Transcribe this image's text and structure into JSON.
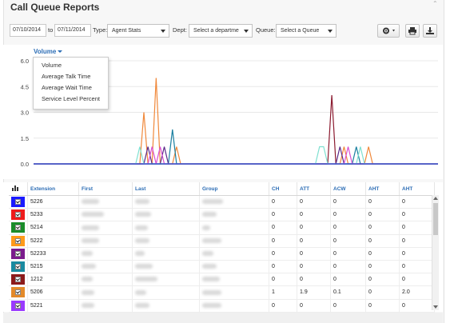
{
  "header": {
    "title": "Call Queue Reports"
  },
  "toolbar": {
    "date_from": "07/10/2014",
    "to_label": "to",
    "date_to": "07/11/2014",
    "type_label": "Type:",
    "type_value": "Agent Stats",
    "dept_label": "Dept:",
    "dept_value": "Select a departme",
    "queue_label": "Queue:",
    "queue_value": "Select a Queue"
  },
  "metric_menu": {
    "selected": "Volume",
    "items": [
      "Volume",
      "Average Talk Time",
      "Average Wait Time",
      "Service Level Percent"
    ]
  },
  "chart_data": {
    "type": "line",
    "y_ticks": [
      "6.0",
      "4.5",
      "3.0",
      "1.5",
      "0.0"
    ],
    "ylim": [
      0,
      6
    ],
    "x": [
      0,
      1,
      2,
      3,
      4,
      5,
      6,
      7,
      8,
      9,
      10,
      11,
      12,
      13,
      14,
      15,
      16,
      17,
      18,
      19,
      20,
      21,
      22,
      23,
      24,
      25,
      26,
      27,
      28,
      29,
      30,
      31,
      32,
      33,
      34,
      35,
      36,
      37,
      38,
      39,
      40,
      41,
      42,
      43,
      44,
      45,
      46,
      47,
      48,
      49,
      50,
      51,
      52,
      53,
      54,
      55,
      56,
      57,
      58,
      59,
      60,
      61,
      62,
      63,
      64,
      65,
      66,
      67,
      68,
      69,
      70,
      71,
      72,
      73,
      74,
      75,
      76,
      77,
      78,
      79,
      80,
      81,
      82,
      83,
      84,
      85,
      86,
      87,
      88,
      89,
      90,
      91,
      92,
      93,
      94,
      95,
      96,
      97,
      98,
      99
    ],
    "series": [
      {
        "color": "#f0883a",
        "values": [
          0,
          0,
          0,
          0,
          0,
          0,
          0,
          0,
          0,
          0,
          0,
          0,
          0,
          0,
          0,
          0,
          0,
          0,
          0,
          0,
          0,
          0,
          0,
          0,
          0,
          0,
          0,
          3,
          0,
          0,
          5,
          0,
          0,
          0,
          0,
          1,
          0,
          0,
          0,
          0,
          0,
          0,
          0,
          0,
          0,
          0,
          0,
          0,
          0,
          0,
          0,
          0,
          0,
          0,
          0,
          0,
          0,
          0,
          0,
          0,
          0,
          0,
          0,
          0,
          0,
          0,
          0,
          0,
          0,
          0,
          0,
          0,
          0,
          0,
          0,
          0,
          1,
          0,
          0,
          0,
          0,
          0,
          1,
          0,
          0,
          0,
          0,
          0,
          0,
          0,
          0,
          0,
          0,
          0,
          0,
          0,
          0,
          0,
          0,
          0
        ]
      },
      {
        "color": "#8b1a2f",
        "values": [
          0,
          0,
          0,
          0,
          0,
          0,
          0,
          0,
          0,
          0,
          0,
          0,
          0,
          0,
          0,
          0,
          0,
          0,
          0,
          0,
          0,
          0,
          0,
          0,
          0,
          0,
          0,
          0,
          0,
          0,
          0,
          0,
          0,
          0,
          0,
          0,
          0,
          0,
          0,
          0,
          0,
          0,
          0,
          0,
          0,
          0,
          0,
          0,
          0,
          0,
          0,
          0,
          0,
          0,
          0,
          0,
          0,
          0,
          0,
          0,
          0,
          0,
          0,
          0,
          0,
          0,
          0,
          0,
          0,
          0,
          0,
          0,
          0,
          4,
          0,
          0,
          0,
          0,
          0,
          0,
          0,
          0,
          0,
          0,
          0,
          0,
          0,
          0,
          0,
          0,
          0,
          0,
          0,
          0,
          0,
          0,
          0,
          0,
          0,
          0
        ]
      },
      {
        "color": "#1a7fa0",
        "values": [
          0,
          0,
          0,
          0,
          0,
          0,
          0,
          0,
          0,
          0,
          0,
          0,
          0,
          0,
          0,
          0,
          0,
          0,
          0,
          0,
          0,
          0,
          0,
          0,
          0,
          0,
          0,
          0,
          0,
          0,
          0,
          0,
          0,
          0,
          2,
          0,
          0,
          0,
          0,
          0,
          0,
          0,
          0,
          0,
          0,
          0,
          0,
          0,
          0,
          0,
          0,
          0,
          0,
          0,
          0,
          0,
          0,
          0,
          0,
          0,
          0,
          0,
          0,
          0,
          0,
          0,
          0,
          0,
          0,
          0,
          0,
          0,
          0,
          0,
          0,
          0,
          0,
          0,
          0,
          1,
          0,
          0,
          0,
          0,
          0,
          0,
          0,
          0,
          0,
          0,
          0,
          0,
          0,
          0,
          0,
          0,
          0,
          0,
          0,
          0
        ]
      },
      {
        "color": "#5a2a8a",
        "values": [
          0,
          0,
          0,
          0,
          0,
          0,
          0,
          0,
          0,
          0,
          0,
          0,
          0,
          0,
          0,
          0,
          0,
          0,
          0,
          0,
          0,
          0,
          0,
          0,
          0,
          0,
          0,
          0,
          1,
          0,
          0,
          0,
          1,
          0,
          0,
          0,
          0,
          0,
          0,
          0,
          0,
          0,
          0,
          0,
          0,
          0,
          0,
          0,
          0,
          0,
          0,
          0,
          0,
          0,
          0,
          0,
          0,
          0,
          0,
          0,
          0,
          0,
          0,
          0,
          0,
          0,
          0,
          0,
          0,
          0,
          0,
          0,
          0,
          0,
          0,
          1,
          0,
          0,
          0,
          0,
          0,
          0,
          0,
          0,
          0,
          0,
          0,
          0,
          0,
          0,
          0,
          0,
          0,
          0,
          0,
          0,
          0,
          0,
          0,
          0
        ]
      },
      {
        "color": "#7fe0d0",
        "values": [
          0,
          0,
          0,
          0,
          0,
          0,
          0,
          0,
          0,
          0,
          0,
          0,
          0,
          0,
          0,
          0,
          0,
          0,
          0,
          0,
          0,
          0,
          0,
          0,
          0,
          0,
          1,
          0,
          0,
          0,
          0,
          0,
          0,
          0,
          0,
          0,
          0,
          0,
          0,
          0,
          0,
          0,
          0,
          0,
          0,
          0,
          0,
          0,
          0,
          0,
          0,
          0,
          0,
          0,
          0,
          0,
          0,
          0,
          0,
          0,
          0,
          0,
          0,
          0,
          0,
          0,
          0,
          0,
          0,
          0,
          1,
          1,
          0,
          0,
          0,
          0,
          0,
          0,
          0,
          0,
          1,
          0,
          0,
          0,
          0,
          0,
          0,
          0,
          0,
          0,
          0,
          0,
          0,
          0,
          0,
          0,
          0,
          0,
          0,
          0
        ]
      },
      {
        "color": "#d94fd0",
        "values": [
          0,
          0,
          0,
          0,
          0,
          0,
          0,
          0,
          0,
          0,
          0,
          0,
          0,
          0,
          0,
          0,
          0,
          0,
          0,
          0,
          0,
          0,
          0,
          0,
          0,
          0,
          0,
          0,
          0,
          1,
          0,
          1,
          0,
          0,
          0,
          0,
          0,
          0,
          0,
          0,
          0,
          0,
          0,
          0,
          0,
          0,
          0,
          0,
          0,
          0,
          0,
          0,
          0,
          0,
          0,
          0,
          0,
          0,
          0,
          0,
          0,
          0,
          0,
          0,
          0,
          0,
          0,
          0,
          0,
          0,
          0,
          0,
          0,
          0,
          0,
          0,
          0,
          1,
          0,
          0,
          0,
          0,
          0,
          0,
          0,
          0,
          0,
          0,
          0,
          0,
          0,
          0,
          0,
          0,
          0,
          0,
          0,
          0,
          0,
          0
        ]
      },
      {
        "color": "#2b4fd6",
        "values": [
          0,
          0,
          0,
          0,
          0,
          0,
          0,
          0,
          0,
          0,
          0,
          0,
          0,
          0,
          0,
          0,
          0,
          0,
          0,
          0,
          0,
          0,
          0,
          0,
          0,
          0,
          0,
          0,
          0,
          0,
          0,
          0,
          0,
          0,
          0,
          0,
          0,
          0,
          0,
          0,
          0,
          0,
          0,
          0,
          0,
          0,
          0,
          0,
          0,
          0,
          0,
          0,
          0,
          0,
          0,
          0,
          0,
          0,
          0,
          0,
          0,
          0,
          0,
          0,
          0,
          0,
          0,
          0,
          0,
          0,
          0,
          0,
          0,
          0,
          0,
          0,
          0,
          0,
          0,
          0,
          0,
          0,
          0,
          0,
          0,
          0,
          0,
          0,
          0,
          0,
          0,
          0,
          0,
          0,
          0,
          0,
          0,
          0,
          0,
          0
        ]
      }
    ]
  },
  "table": {
    "columns": [
      "Extension",
      "First",
      "Last",
      "Group",
      "CH",
      "ATT",
      "ACW",
      "AHT",
      "AHT"
    ],
    "rows": [
      {
        "color": "#1a1aff",
        "ext": "5226",
        "ch": "0",
        "att": "0",
        "acw": "0",
        "aht": "0",
        "aht2": "0"
      },
      {
        "color": "#ee1c1c",
        "ext": "5233",
        "ch": "0",
        "att": "0",
        "acw": "0",
        "aht": "0",
        "aht2": "0"
      },
      {
        "color": "#1a8c2a",
        "ext": "5214",
        "ch": "0",
        "att": "0",
        "acw": "0",
        "aht": "0",
        "aht2": "0"
      },
      {
        "color": "#ff9a1a",
        "ext": "5222",
        "ch": "0",
        "att": "0",
        "acw": "0",
        "aht": "0",
        "aht2": "0"
      },
      {
        "color": "#7a1a8c",
        "ext": "52233",
        "ch": "0",
        "att": "0",
        "acw": "0",
        "aht": "0",
        "aht2": "0"
      },
      {
        "color": "#1a8aa0",
        "ext": "5215",
        "ch": "0",
        "att": "0",
        "acw": "0",
        "aht": "0",
        "aht2": "0"
      },
      {
        "color": "#8c1a1a",
        "ext": "1212",
        "ch": "0",
        "att": "0",
        "acw": "0",
        "aht": "0",
        "aht2": "0"
      },
      {
        "color": "#e38a2a",
        "ext": "5206",
        "ch": "1",
        "att": "1.9",
        "acw": "0.1",
        "aht": "0",
        "aht2": "2.0"
      },
      {
        "color": "#9a3aff",
        "ext": "5221",
        "ch": "0",
        "att": "0",
        "acw": "0",
        "aht": "0",
        "aht2": "0"
      }
    ]
  }
}
